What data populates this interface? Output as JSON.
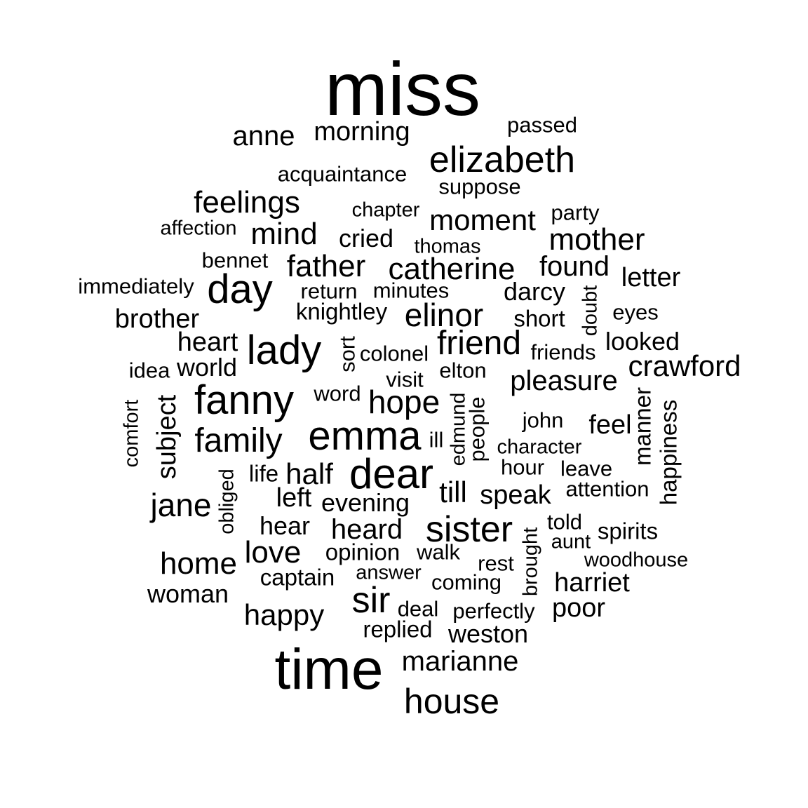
{
  "words": [
    {
      "text": "miss"
    },
    {
      "text": "passed"
    },
    {
      "text": "anne"
    },
    {
      "text": "morning"
    },
    {
      "text": "elizabeth"
    },
    {
      "text": "acquaintance"
    },
    {
      "text": "suppose"
    },
    {
      "text": "feelings"
    },
    {
      "text": "chapter"
    },
    {
      "text": "party"
    },
    {
      "text": "affection"
    },
    {
      "text": "mind"
    },
    {
      "text": "cried"
    },
    {
      "text": "moment"
    },
    {
      "text": "mother"
    },
    {
      "text": "thomas"
    },
    {
      "text": "bennet"
    },
    {
      "text": "father"
    },
    {
      "text": "catherine"
    },
    {
      "text": "found"
    },
    {
      "text": "letter"
    },
    {
      "text": "immediately"
    },
    {
      "text": "day"
    },
    {
      "text": "return"
    },
    {
      "text": "minutes"
    },
    {
      "text": "darcy"
    },
    {
      "text": "doubt"
    },
    {
      "text": "knightley"
    },
    {
      "text": "elinor"
    },
    {
      "text": "brother"
    },
    {
      "text": "short"
    },
    {
      "text": "eyes"
    },
    {
      "text": "heart"
    },
    {
      "text": "lady"
    },
    {
      "text": "sort"
    },
    {
      "text": "colonel"
    },
    {
      "text": "friend"
    },
    {
      "text": "friends"
    },
    {
      "text": "looked"
    },
    {
      "text": "idea"
    },
    {
      "text": "world"
    },
    {
      "text": "visit"
    },
    {
      "text": "elton"
    },
    {
      "text": "pleasure"
    },
    {
      "text": "crawford"
    },
    {
      "text": "fanny"
    },
    {
      "text": "word"
    },
    {
      "text": "hope"
    },
    {
      "text": "edmund"
    },
    {
      "text": "people"
    },
    {
      "text": "manner"
    },
    {
      "text": "happiness"
    },
    {
      "text": "comfort"
    },
    {
      "text": "subject"
    },
    {
      "text": "family"
    },
    {
      "text": "emma"
    },
    {
      "text": "ill"
    },
    {
      "text": "john"
    },
    {
      "text": "feel"
    },
    {
      "text": "character"
    },
    {
      "text": "life"
    },
    {
      "text": "half"
    },
    {
      "text": "dear"
    },
    {
      "text": "hour"
    },
    {
      "text": "leave"
    },
    {
      "text": "obliged"
    },
    {
      "text": "jane"
    },
    {
      "text": "left"
    },
    {
      "text": "evening"
    },
    {
      "text": "till"
    },
    {
      "text": "speak"
    },
    {
      "text": "attention"
    },
    {
      "text": "hear"
    },
    {
      "text": "heard"
    },
    {
      "text": "sister"
    },
    {
      "text": "told"
    },
    {
      "text": "brought"
    },
    {
      "text": "spirits"
    },
    {
      "text": "aunt"
    },
    {
      "text": "love"
    },
    {
      "text": "opinion"
    },
    {
      "text": "walk"
    },
    {
      "text": "home"
    },
    {
      "text": "rest"
    },
    {
      "text": "woodhouse"
    },
    {
      "text": "captain"
    },
    {
      "text": "answer"
    },
    {
      "text": "coming"
    },
    {
      "text": "harriet"
    },
    {
      "text": "woman"
    },
    {
      "text": "sir"
    },
    {
      "text": "happy"
    },
    {
      "text": "deal"
    },
    {
      "text": "perfectly"
    },
    {
      "text": "poor"
    },
    {
      "text": "replied"
    },
    {
      "text": "weston"
    },
    {
      "text": "time"
    },
    {
      "text": "marianne"
    },
    {
      "text": "house"
    }
  ]
}
